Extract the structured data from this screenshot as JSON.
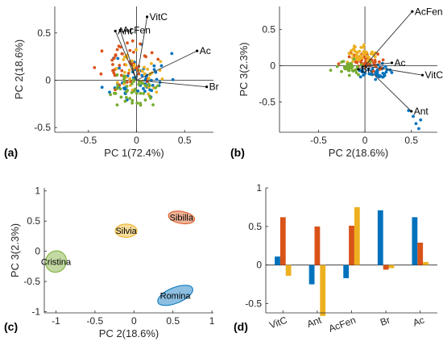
{
  "colors": {
    "blue": "#0072BD",
    "orange": "#D95319",
    "yellow": "#EDB120",
    "green": "#77AC30",
    "axis": "#262626"
  },
  "panel_letters": {
    "a": "(a)",
    "b": "(b)",
    "c": "(c)",
    "d": "(d)"
  },
  "chart_data": [
    {
      "id": "a",
      "type": "scatter",
      "title": "",
      "xlabel": "PC 1(72.4%)",
      "ylabel": "PC 2(18.6%)",
      "xlim": [
        -0.85,
        0.8
      ],
      "ylim": [
        -0.55,
        0.78
      ],
      "xticks": [
        -0.5,
        0,
        0.5
      ],
      "xtick_labels": [
        "-0.5",
        "0",
        "0.5"
      ],
      "yticks": [
        -0.5,
        0,
        0.5
      ],
      "ytick_labels": [
        "-0.5",
        "0",
        "0.5"
      ],
      "grid": false,
      "crosshair": true,
      "clusters": [
        {
          "color": "blue",
          "cx": 0.02,
          "cy": 0.02,
          "sx": 0.25,
          "sy": 0.22,
          "n": 55,
          "seed": 11
        },
        {
          "color": "orange",
          "cx": -0.08,
          "cy": 0.16,
          "sx": 0.22,
          "sy": 0.17,
          "n": 48,
          "seed": 23
        },
        {
          "color": "yellow",
          "cx": 0.02,
          "cy": 0.06,
          "sx": 0.18,
          "sy": 0.18,
          "n": 38,
          "seed": 37
        },
        {
          "color": "green",
          "cx": -0.05,
          "cy": -0.12,
          "sx": 0.24,
          "sy": 0.16,
          "n": 48,
          "seed": 51
        }
      ],
      "loadings": [
        {
          "label": "VitC",
          "x": 0.11,
          "y": 0.67
        },
        {
          "label": "Ant",
          "x": -0.22,
          "y": 0.52
        },
        {
          "label": "AcFen",
          "x": -0.17,
          "y": 0.53
        },
        {
          "label": "Ac",
          "x": 0.63,
          "y": 0.31
        },
        {
          "label": "Br",
          "x": 0.73,
          "y": -0.07
        }
      ]
    },
    {
      "id": "b",
      "type": "scatter",
      "title": "",
      "xlabel": "PC 2(18.6%)",
      "ylabel": "PC 3(2.3%)",
      "xlim": [
        -0.92,
        0.78
      ],
      "ylim": [
        -0.92,
        0.82
      ],
      "xticks": [
        -0.5,
        0,
        0.5
      ],
      "xtick_labels": [
        "-0.5",
        "0",
        "0.5"
      ],
      "yticks": [
        -0.5,
        0,
        0.5
      ],
      "ytick_labels": [
        "-0.5",
        "0",
        "0.5"
      ],
      "grid": false,
      "crosshair": true,
      "clusters": [
        {
          "color": "blue",
          "cx": 0.1,
          "cy": -0.08,
          "sx": 0.17,
          "sy": 0.1,
          "n": 45,
          "seed": 61
        },
        {
          "color": "orange",
          "cx": 0.02,
          "cy": 0.08,
          "sx": 0.17,
          "sy": 0.1,
          "n": 48,
          "seed": 73
        },
        {
          "color": "yellow",
          "cx": -0.02,
          "cy": 0.16,
          "sx": 0.16,
          "sy": 0.11,
          "n": 40,
          "seed": 89
        },
        {
          "color": "green",
          "cx": -0.2,
          "cy": -0.02,
          "sx": 0.14,
          "sy": 0.09,
          "n": 42,
          "seed": 97
        }
      ],
      "extra_points": [
        {
          "color": "blue",
          "x": 0.55,
          "y": -0.8
        },
        {
          "color": "blue",
          "x": 0.58,
          "y": -0.87
        },
        {
          "color": "blue",
          "x": 0.47,
          "y": -0.62
        },
        {
          "color": "blue",
          "x": 0.52,
          "y": -0.7
        },
        {
          "color": "blue",
          "x": 0.6,
          "y": -0.75
        }
      ],
      "loadings": [
        {
          "label": "AcFen",
          "x": 0.51,
          "y": 0.75
        },
        {
          "label": "Ac",
          "x": 0.29,
          "y": 0.04
        },
        {
          "label": "VitC",
          "x": 0.62,
          "y": -0.13
        },
        {
          "label": "Ant",
          "x": 0.5,
          "y": -0.63
        },
        {
          "label": "Br",
          "x": -0.07,
          "y": -0.05
        }
      ]
    },
    {
      "id": "c",
      "type": "scatter",
      "title": "",
      "xlabel": "PC 2(18.6%)",
      "ylabel": "PC 3(2.3%)",
      "xlim": [
        -1.15,
        1.02
      ],
      "ylim": [
        -1.02,
        1.05
      ],
      "xticks": [
        -1,
        -0.5,
        0,
        0.5,
        1
      ],
      "xtick_labels": [
        "-1",
        "-0.5",
        "0",
        "0.5",
        "1"
      ],
      "yticks": [
        -1,
        -0.5,
        0,
        0.5,
        1
      ],
      "ytick_labels": [
        "-1",
        "-0.5",
        "0",
        "0.5",
        "1"
      ],
      "grid": false,
      "groups": [
        {
          "name": "Sibilla",
          "color": "orange",
          "x": 0.61,
          "y": 0.56,
          "rx": 0.17,
          "ry": 0.1,
          "angle": 10
        },
        {
          "name": "Silvia",
          "color": "yellow",
          "x": -0.1,
          "y": 0.34,
          "rx": 0.14,
          "ry": 0.11,
          "angle": 0
        },
        {
          "name": "Cristina",
          "color": "green",
          "x": -1.0,
          "y": -0.17,
          "rx": 0.14,
          "ry": 0.17,
          "angle": -55
        },
        {
          "name": "Romina",
          "color": "blue",
          "x": 0.53,
          "y": -0.73,
          "rx": 0.24,
          "ry": 0.13,
          "angle": -22
        }
      ]
    },
    {
      "id": "d",
      "type": "bar",
      "title": "",
      "categories": [
        "VitC",
        "Ant",
        "AcFen",
        "Br",
        "Ac"
      ],
      "series": [
        {
          "color": "blue",
          "values": [
            0.11,
            -0.25,
            -0.17,
            0.71,
            0.62
          ]
        },
        {
          "color": "orange",
          "values": [
            0.62,
            0.5,
            0.51,
            -0.06,
            0.29
          ]
        },
        {
          "color": "yellow",
          "values": [
            -0.14,
            -0.66,
            0.75,
            -0.04,
            0.04
          ]
        }
      ],
      "ylim": [
        -0.62,
        1.0
      ],
      "yticks": [
        -0.5,
        0,
        0.5,
        1
      ],
      "ytick_labels": [
        "-0.5",
        "0",
        "0.5",
        "1"
      ],
      "xlabel": "",
      "ylabel": "",
      "grid": false
    }
  ]
}
